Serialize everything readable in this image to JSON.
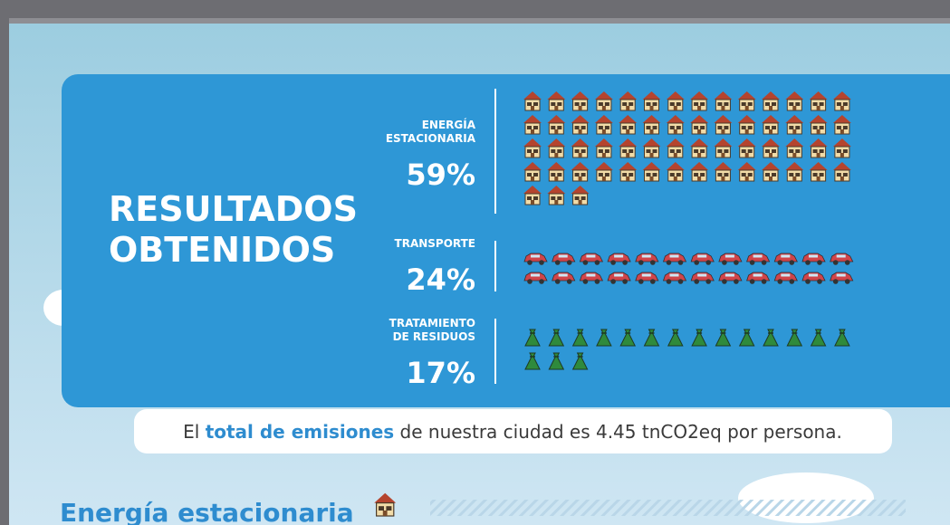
{
  "panel": {
    "title_lines": [
      "RESULTADOS",
      "OBTENIDOS"
    ],
    "items": [
      {
        "label_lines": [
          "ENERGÍA",
          "ESTACIONARIA"
        ],
        "value": 59,
        "value_label": "59%",
        "icon": "house",
        "per_row": 14
      },
      {
        "label_lines": [
          "TRANSPORTE"
        ],
        "value": 24,
        "value_label": "24%",
        "icon": "car",
        "per_row": 12
      },
      {
        "label_lines": [
          "TRATAMIENTO",
          "DE RESIDUOS"
        ],
        "value": 17,
        "value_label": "17%",
        "icon": "bag",
        "per_row": 14
      }
    ]
  },
  "summary": {
    "before": "El ",
    "highlight": "total de emisiones",
    "after": " de nuestra ciudad es 4.45 tnCO2eq por persona."
  },
  "section": {
    "title": "Energía estacionaria"
  }
}
